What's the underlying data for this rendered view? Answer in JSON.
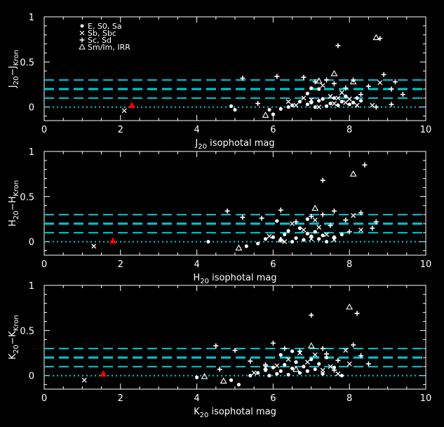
{
  "chart_data": [
    {
      "type": "scatter",
      "xlabel": "J20 isophotal mag",
      "xlabel_main": "J",
      "xlabel_sub": "20",
      "xlabel_rest": " isophotal mag",
      "ylabel_main1": "J",
      "ylabel_sub1": "20",
      "ylabel_mid": "−J",
      "ylabel_sub2": "Kron",
      "xlim": [
        0,
        10
      ],
      "ylim": [
        -0.15,
        1.0
      ],
      "xticks": [
        "0",
        "2",
        "4",
        "6",
        "8",
        "10"
      ],
      "yticks": [
        "0",
        "0.5",
        "1"
      ],
      "hlines": [
        0.1,
        0.2,
        0.3
      ],
      "zero_line": 0,
      "legend": [
        "E, S0, Sa",
        "Sb, Sbc",
        "Sc, Sd",
        "Sm/Im, IRR"
      ],
      "highlight": {
        "x": 2.3,
        "y": 0.02,
        "color": "#ff0000"
      },
      "series": [
        {
          "name": "E, S0, Sa",
          "marker": "dot",
          "points": [
            [
              4.9,
              0.01
            ],
            [
              5.0,
              -0.03
            ],
            [
              5.9,
              -0.03
            ],
            [
              6.0,
              -0.08
            ],
            [
              6.2,
              -0.02
            ],
            [
              6.4,
              0.0
            ],
            [
              6.5,
              0.02
            ],
            [
              6.7,
              0.06
            ],
            [
              6.9,
              0.03
            ],
            [
              7.0,
              0.05
            ],
            [
              7.1,
              0.0
            ],
            [
              7.2,
              0.07
            ],
            [
              7.3,
              0.09
            ],
            [
              7.4,
              0.01
            ],
            [
              7.5,
              0.04
            ],
            [
              7.6,
              0.1
            ],
            [
              7.7,
              0.02
            ],
            [
              7.8,
              0.06
            ],
            [
              7.9,
              0.12
            ],
            [
              8.0,
              0.03
            ],
            [
              8.1,
              0.05
            ],
            [
              8.2,
              0.1
            ],
            [
              8.3,
              0.07
            ],
            [
              7.2,
              0.2
            ],
            [
              6.9,
              0.15
            ],
            [
              7.0,
              0.21
            ]
          ]
        },
        {
          "name": "Sb, Sbc",
          "marker": "x",
          "points": [
            [
              2.1,
              -0.04
            ],
            [
              6.4,
              0.06
            ],
            [
              6.6,
              0.02
            ],
            [
              6.8,
              0.1
            ],
            [
              7.0,
              0.08
            ],
            [
              7.2,
              0.0
            ],
            [
              7.3,
              0.24
            ],
            [
              7.5,
              0.12
            ],
            [
              7.6,
              0.04
            ],
            [
              7.8,
              0.16
            ],
            [
              8.0,
              0.09
            ],
            [
              8.2,
              0.02
            ],
            [
              8.6,
              0.02
            ],
            [
              8.8,
              0.27
            ],
            [
              7.9,
              0.05
            ],
            [
              7.7,
              0.1
            ]
          ]
        },
        {
          "name": "Sc, Sd",
          "marker": "plus",
          "points": [
            [
              5.2,
              0.32
            ],
            [
              5.6,
              0.04
            ],
            [
              6.1,
              0.34
            ],
            [
              6.8,
              0.33
            ],
            [
              7.1,
              0.28
            ],
            [
              7.4,
              0.3
            ],
            [
              7.6,
              0.26
            ],
            [
              7.7,
              0.68
            ],
            [
              7.9,
              0.21
            ],
            [
              8.1,
              0.3
            ],
            [
              8.3,
              0.14
            ],
            [
              8.5,
              0.23
            ],
            [
              8.8,
              0.76
            ],
            [
              8.9,
              0.36
            ],
            [
              9.1,
              0.2
            ],
            [
              9.2,
              0.28
            ],
            [
              9.4,
              0.14
            ],
            [
              9.1,
              0.03
            ],
            [
              8.7,
              0.0
            ]
          ]
        },
        {
          "name": "Sm/Im, IRR",
          "marker": "triangle",
          "points": [
            [
              5.8,
              -0.09
            ],
            [
              7.2,
              0.29
            ],
            [
              7.6,
              0.37
            ],
            [
              8.7,
              0.77
            ],
            [
              8.1,
              0.28
            ]
          ]
        }
      ]
    },
    {
      "type": "scatter",
      "xlabel": "H20 isophotal mag",
      "xlabel_main": "H",
      "xlabel_sub": "20",
      "xlabel_rest": " isophotal mag",
      "ylabel_main1": "H",
      "ylabel_sub1": "20",
      "ylabel_mid": "−H",
      "ylabel_sub2": "Kron",
      "xlim": [
        0,
        10
      ],
      "ylim": [
        -0.15,
        1.0
      ],
      "xticks": [
        "0",
        "2",
        "4",
        "6",
        "8",
        "10"
      ],
      "yticks": [
        "0",
        "0.5",
        "1"
      ],
      "hlines": [
        0.1,
        0.2,
        0.3
      ],
      "zero_line": 0,
      "highlight": {
        "x": 1.8,
        "y": 0.01,
        "color": "#ff0000"
      },
      "series": [
        {
          "name": "E, S0, Sa",
          "marker": "dot",
          "points": [
            [
              4.3,
              0.0
            ],
            [
              5.3,
              -0.05
            ],
            [
              5.6,
              -0.02
            ],
            [
              5.8,
              0.03
            ],
            [
              6.0,
              0.05
            ],
            [
              6.1,
              0.23
            ],
            [
              6.2,
              0.02
            ],
            [
              6.3,
              0.08
            ],
            [
              6.4,
              0.12
            ],
            [
              6.5,
              0.0
            ],
            [
              6.6,
              0.04
            ],
            [
              6.7,
              0.15
            ],
            [
              6.8,
              0.02
            ],
            [
              6.9,
              0.09
            ],
            [
              7.0,
              0.06
            ],
            [
              7.1,
              0.11
            ],
            [
              7.2,
              0.03
            ],
            [
              7.3,
              0.07
            ],
            [
              7.4,
              0.0
            ],
            [
              7.6,
              0.05
            ],
            [
              7.8,
              0.08
            ],
            [
              6.9,
              0.25
            ]
          ]
        },
        {
          "name": "Sb, Sbc",
          "marker": "x",
          "points": [
            [
              1.3,
              -0.05
            ],
            [
              5.9,
              0.06
            ],
            [
              6.3,
              0.0
            ],
            [
              6.5,
              0.2
            ],
            [
              6.8,
              0.13
            ],
            [
              7.0,
              0.03
            ],
            [
              7.2,
              0.16
            ],
            [
              7.4,
              0.08
            ],
            [
              7.6,
              0.02
            ],
            [
              8.1,
              0.29
            ],
            [
              8.3,
              0.13
            ],
            [
              7.1,
              0.24
            ]
          ]
        },
        {
          "name": "Sc, Sd",
          "marker": "plus",
          "points": [
            [
              4.8,
              0.34
            ],
            [
              5.2,
              0.27
            ],
            [
              5.7,
              0.26
            ],
            [
              6.2,
              0.35
            ],
            [
              6.6,
              0.22
            ],
            [
              7.0,
              0.28
            ],
            [
              7.3,
              0.3
            ],
            [
              7.5,
              0.18
            ],
            [
              7.6,
              0.34
            ],
            [
              7.9,
              0.24
            ],
            [
              8.0,
              0.11
            ],
            [
              8.3,
              0.32
            ],
            [
              8.4,
              0.85
            ],
            [
              8.6,
              0.15
            ],
            [
              8.7,
              0.22
            ],
            [
              7.3,
              0.68
            ]
          ]
        },
        {
          "name": "Sm/Im, IRR",
          "marker": "triangle",
          "points": [
            [
              5.1,
              -0.07
            ],
            [
              7.1,
              0.37
            ],
            [
              8.1,
              0.75
            ],
            [
              6.2,
              0.02
            ]
          ]
        }
      ]
    },
    {
      "type": "scatter",
      "xlabel": "K20 isophotal mag",
      "xlabel_main": "K",
      "xlabel_sub": "20",
      "xlabel_rest": " isophotal mag",
      "ylabel_main1": "K",
      "ylabel_sub1": "20",
      "ylabel_mid": "−K",
      "ylabel_sub2": "Kron",
      "xlim": [
        0,
        10
      ],
      "ylim": [
        -0.15,
        1.0
      ],
      "xticks": [
        "0",
        "2",
        "4",
        "6",
        "8",
        "10"
      ],
      "yticks": [
        "0",
        "0.5",
        "1"
      ],
      "hlines": [
        0.1,
        0.2,
        0.3
      ],
      "zero_line": 0,
      "highlight": {
        "x": 1.55,
        "y": 0.02,
        "color": "#ff0000"
      },
      "series": [
        {
          "name": "E, S0, Sa",
          "marker": "dot",
          "points": [
            [
              4.0,
              -0.02
            ],
            [
              4.9,
              -0.05
            ],
            [
              5.1,
              -0.1
            ],
            [
              5.4,
              0.0
            ],
            [
              5.6,
              0.03
            ],
            [
              5.8,
              0.06
            ],
            [
              5.9,
              0.0
            ],
            [
              6.0,
              0.09
            ],
            [
              6.1,
              0.02
            ],
            [
              6.2,
              0.05
            ],
            [
              6.3,
              0.12
            ],
            [
              6.4,
              0.01
            ],
            [
              6.5,
              0.08
            ],
            [
              6.6,
              0.15
            ],
            [
              6.7,
              0.03
            ],
            [
              6.8,
              0.1
            ],
            [
              6.9,
              0.05
            ],
            [
              7.0,
              0.18
            ],
            [
              7.1,
              0.07
            ],
            [
              7.2,
              0.13
            ],
            [
              7.3,
              0.02
            ],
            [
              7.6,
              0.09
            ],
            [
              7.8,
              0.0
            ],
            [
              7.4,
              0.2
            ],
            [
              6.2,
              0.23
            ],
            [
              6.5,
              0.27
            ]
          ]
        },
        {
          "name": "Sb, Sbc",
          "marker": "x",
          "points": [
            [
              1.05,
              -0.05
            ],
            [
              5.5,
              0.03
            ],
            [
              5.8,
              0.09
            ],
            [
              6.1,
              0.11
            ],
            [
              6.4,
              0.18
            ],
            [
              6.7,
              0.25
            ],
            [
              6.9,
              0.15
            ],
            [
              7.1,
              0.23
            ],
            [
              7.3,
              0.06
            ],
            [
              7.5,
              0.1
            ],
            [
              7.9,
              0.28
            ],
            [
              8.0,
              0.13
            ],
            [
              7.7,
              0.02
            ]
          ]
        },
        {
          "name": "Sc, Sd",
          "marker": "plus",
          "points": [
            [
              4.5,
              0.33
            ],
            [
              4.6,
              0.07
            ],
            [
              5.0,
              0.28
            ],
            [
              5.4,
              0.16
            ],
            [
              5.8,
              0.12
            ],
            [
              6.0,
              0.36
            ],
            [
              6.3,
              0.3
            ],
            [
              6.7,
              0.27
            ],
            [
              7.0,
              0.67
            ],
            [
              7.3,
              0.3
            ],
            [
              7.4,
              0.24
            ],
            [
              7.7,
              0.17
            ],
            [
              8.1,
              0.34
            ],
            [
              8.2,
              0.69
            ],
            [
              8.3,
              0.22
            ],
            [
              8.5,
              0.13
            ],
            [
              7.6,
              0.06
            ]
          ]
        },
        {
          "name": "Sm/Im, IRR",
          "marker": "triangle",
          "points": [
            [
              4.2,
              -0.01
            ],
            [
              4.7,
              -0.06
            ],
            [
              7.0,
              0.33
            ],
            [
              8.0,
              0.76
            ],
            [
              6.6,
              0.07
            ]
          ]
        }
      ]
    }
  ]
}
